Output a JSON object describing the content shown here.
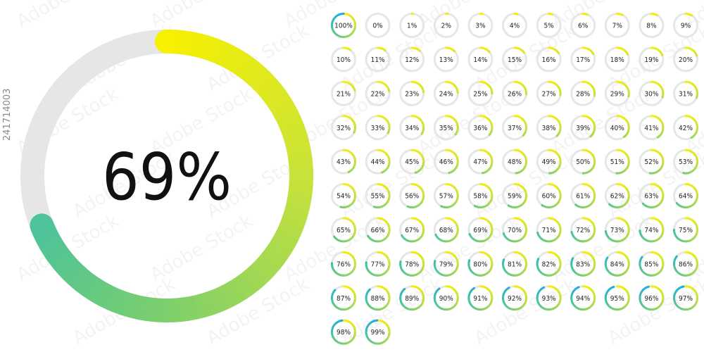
{
  "main_gauge": {
    "value": 69,
    "label": "69%"
  },
  "small_gauges": [
    {
      "value": 100,
      "label": "100%"
    },
    {
      "value": 0,
      "label": "0%"
    },
    {
      "value": 1,
      "label": "1%"
    },
    {
      "value": 2,
      "label": "2%"
    },
    {
      "value": 3,
      "label": "3%"
    },
    {
      "value": 4,
      "label": "4%"
    },
    {
      "value": 5,
      "label": "5%"
    },
    {
      "value": 6,
      "label": "6%"
    },
    {
      "value": 7,
      "label": "7%"
    },
    {
      "value": 8,
      "label": "8%"
    },
    {
      "value": 9,
      "label": "9%"
    },
    {
      "value": 10,
      "label": "10%"
    },
    {
      "value": 11,
      "label": "11%"
    },
    {
      "value": 12,
      "label": "12%"
    },
    {
      "value": 13,
      "label": "13%"
    },
    {
      "value": 14,
      "label": "14%"
    },
    {
      "value": 15,
      "label": "15%"
    },
    {
      "value": 16,
      "label": "16%"
    },
    {
      "value": 17,
      "label": "17%"
    },
    {
      "value": 18,
      "label": "18%"
    },
    {
      "value": 19,
      "label": "19%"
    },
    {
      "value": 20,
      "label": "20%"
    },
    {
      "value": 21,
      "label": "21%"
    },
    {
      "value": 22,
      "label": "22%"
    },
    {
      "value": 23,
      "label": "23%"
    },
    {
      "value": 24,
      "label": "24%"
    },
    {
      "value": 25,
      "label": "25%"
    },
    {
      "value": 26,
      "label": "26%"
    },
    {
      "value": 27,
      "label": "27%"
    },
    {
      "value": 28,
      "label": "28%"
    },
    {
      "value": 29,
      "label": "29%"
    },
    {
      "value": 30,
      "label": "30%"
    },
    {
      "value": 31,
      "label": "31%"
    },
    {
      "value": 32,
      "label": "32%"
    },
    {
      "value": 33,
      "label": "33%"
    },
    {
      "value": 34,
      "label": "34%"
    },
    {
      "value": 35,
      "label": "35%"
    },
    {
      "value": 36,
      "label": "36%"
    },
    {
      "value": 37,
      "label": "37%"
    },
    {
      "value": 38,
      "label": "38%"
    },
    {
      "value": 39,
      "label": "39%"
    },
    {
      "value": 40,
      "label": "40%"
    },
    {
      "value": 41,
      "label": "41%"
    },
    {
      "value": 42,
      "label": "42%"
    },
    {
      "value": 43,
      "label": "43%"
    },
    {
      "value": 44,
      "label": "44%"
    },
    {
      "value": 45,
      "label": "45%"
    },
    {
      "value": 46,
      "label": "46%"
    },
    {
      "value": 47,
      "label": "47%"
    },
    {
      "value": 48,
      "label": "48%"
    },
    {
      "value": 49,
      "label": "49%"
    },
    {
      "value": 50,
      "label": "50%"
    },
    {
      "value": 51,
      "label": "51%"
    },
    {
      "value": 52,
      "label": "52%"
    },
    {
      "value": 53,
      "label": "53%"
    },
    {
      "value": 54,
      "label": "54%"
    },
    {
      "value": 55,
      "label": "55%"
    },
    {
      "value": 56,
      "label": "56%"
    },
    {
      "value": 57,
      "label": "57%"
    },
    {
      "value": 58,
      "label": "58%"
    },
    {
      "value": 59,
      "label": "59%"
    },
    {
      "value": 60,
      "label": "60%"
    },
    {
      "value": 61,
      "label": "61%"
    },
    {
      "value": 62,
      "label": "62%"
    },
    {
      "value": 63,
      "label": "63%"
    },
    {
      "value": 64,
      "label": "64%"
    },
    {
      "value": 65,
      "label": "65%"
    },
    {
      "value": 66,
      "label": "66%"
    },
    {
      "value": 67,
      "label": "67%"
    },
    {
      "value": 68,
      "label": "68%"
    },
    {
      "value": 69,
      "label": "69%"
    },
    {
      "value": 70,
      "label": "70%"
    },
    {
      "value": 71,
      "label": "71%"
    },
    {
      "value": 72,
      "label": "72%"
    },
    {
      "value": 73,
      "label": "73%"
    },
    {
      "value": 74,
      "label": "74%"
    },
    {
      "value": 75,
      "label": "75%"
    },
    {
      "value": 76,
      "label": "76%"
    },
    {
      "value": 77,
      "label": "77%"
    },
    {
      "value": 78,
      "label": "78%"
    },
    {
      "value": 79,
      "label": "79%"
    },
    {
      "value": 80,
      "label": "80%"
    },
    {
      "value": 81,
      "label": "81%"
    },
    {
      "value": 82,
      "label": "82%"
    },
    {
      "value": 83,
      "label": "83%"
    },
    {
      "value": 84,
      "label": "84%"
    },
    {
      "value": 85,
      "label": "85%"
    },
    {
      "value": 86,
      "label": "86%"
    },
    {
      "value": 87,
      "label": "87%"
    },
    {
      "value": 88,
      "label": "88%"
    },
    {
      "value": 89,
      "label": "89%"
    },
    {
      "value": 90,
      "label": "90%"
    },
    {
      "value": 91,
      "label": "91%"
    },
    {
      "value": 92,
      "label": "92%"
    },
    {
      "value": 93,
      "label": "93%"
    },
    {
      "value": 94,
      "label": "94%"
    },
    {
      "value": 95,
      "label": "95%"
    },
    {
      "value": 96,
      "label": "96%"
    },
    {
      "value": 97,
      "label": "97%"
    },
    {
      "value": 98,
      "label": "98%"
    },
    {
      "value": 99,
      "label": "99%"
    }
  ],
  "colors": {
    "gradient_start": "#f7f000",
    "gradient_mid_1": "#c8e23a",
    "gradient_mid_2": "#7dcf6b",
    "gradient_mid_3": "#3dbfa9",
    "gradient_end": "#15a8ea",
    "track": "#e6e6e6",
    "text": "#111111"
  },
  "side_id": "241714003",
  "watermark_text": "Adobe Stock"
}
